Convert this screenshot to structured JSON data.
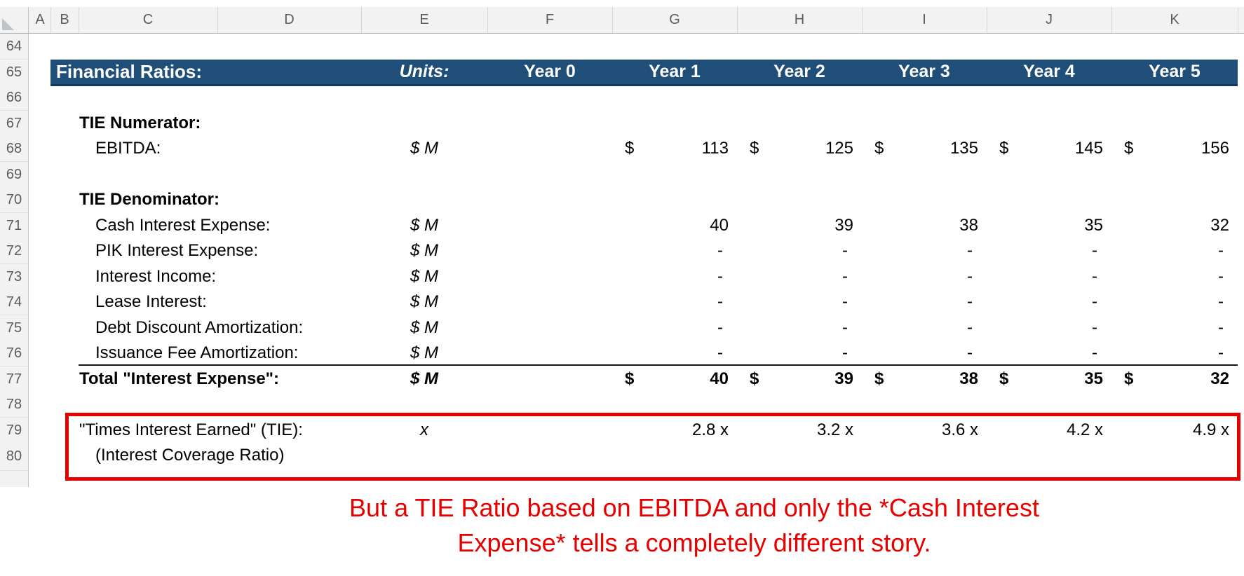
{
  "spreadsheet": {
    "column_letters": [
      "A",
      "B",
      "C",
      "D",
      "E",
      "F",
      "G",
      "H",
      "I",
      "J",
      "K"
    ],
    "row_numbers": [
      "64",
      "65",
      "66",
      "67",
      "68",
      "69",
      "70",
      "71",
      "72",
      "73",
      "74",
      "75",
      "76",
      "77",
      "78",
      "79",
      "80"
    ],
    "header_row": {
      "title": "Financial Ratios:",
      "units_label": "Units:",
      "year_labels": [
        "Year 0",
        "Year 1",
        "Year 2",
        "Year 3",
        "Year 4",
        "Year 5"
      ],
      "band_color": "#1f4e79"
    },
    "rows": [
      {
        "row": 67,
        "label": "TIE Numerator:",
        "bold": true
      },
      {
        "row": 68,
        "label": "EBITDA:",
        "indent": true,
        "units": "$ M",
        "accounting": true,
        "values": [
          "113",
          "125",
          "135",
          "145",
          "156"
        ]
      },
      {
        "row": 70,
        "label": "TIE Denominator:",
        "bold": true
      },
      {
        "row": 71,
        "label": "Cash Interest Expense:",
        "indent": true,
        "units": "$ M",
        "values": [
          "40",
          "39",
          "38",
          "35",
          "32"
        ]
      },
      {
        "row": 72,
        "label": "PIK Interest Expense:",
        "indent": true,
        "units": "$ M",
        "values": [
          "-",
          "-",
          "-",
          "-",
          "-"
        ]
      },
      {
        "row": 73,
        "label": "Interest Income:",
        "indent": true,
        "units": "$ M",
        "values": [
          "-",
          "-",
          "-",
          "-",
          "-"
        ]
      },
      {
        "row": 74,
        "label": "Lease Interest:",
        "indent": true,
        "units": "$ M",
        "values": [
          "-",
          "-",
          "-",
          "-",
          "-"
        ]
      },
      {
        "row": 75,
        "label": "Debt Discount Amortization:",
        "indent": true,
        "units": "$ M",
        "values": [
          "-",
          "-",
          "-",
          "-",
          "-"
        ]
      },
      {
        "row": 76,
        "label": "Issuance Fee Amortization:",
        "indent": true,
        "units": "$ M",
        "values": [
          "-",
          "-",
          "-",
          "-",
          "-"
        ],
        "border_bottom": true
      },
      {
        "row": 77,
        "label": "Total \"Interest Expense\":",
        "bold": true,
        "units": "$ M",
        "accounting": true,
        "values": [
          "40",
          "39",
          "38",
          "35",
          "32"
        ]
      },
      {
        "row": 79,
        "label": "\"Times Interest Earned\" (TIE):",
        "units": "x",
        "values": [
          "2.8 x",
          "3.2 x",
          "3.6 x",
          "4.2 x",
          "4.9 x"
        ]
      },
      {
        "row": 80,
        "label": "(Interest Coverage Ratio)",
        "indent": true
      }
    ]
  },
  "annotation": {
    "highlight_box_color": "#e60000",
    "caption_color": "#e60000",
    "caption_line1": "But a TIE Ratio based on EBITDA and only the *Cash Interest",
    "caption_line2": "Expense* tells a completely different story."
  }
}
